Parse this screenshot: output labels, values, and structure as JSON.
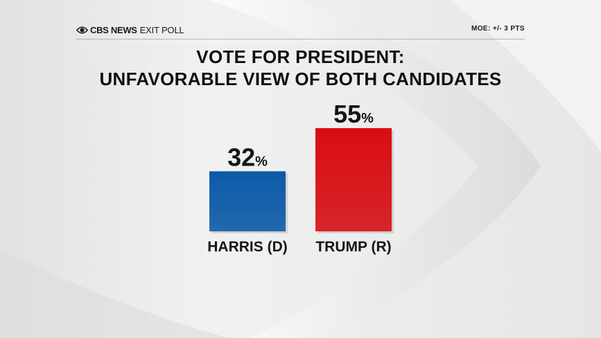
{
  "header": {
    "brand_name": "CBS NEWS",
    "brand_poll": "EXIT POLL",
    "moe": "MOE: +/- 3 PTS"
  },
  "chart_data": {
    "type": "bar",
    "title_lines": [
      "VOTE FOR PRESIDENT:",
      "UNFAVORABLE VIEW OF BOTH CANDIDATES"
    ],
    "categories": [
      "HARRIS (D)",
      "TRUMP (R)"
    ],
    "values": [
      32,
      55
    ],
    "value_unit": "%",
    "colors": [
      "#0b5aa8",
      "#d80d12"
    ],
    "ylim": [
      0,
      100
    ],
    "grid": false,
    "legend": "none"
  }
}
